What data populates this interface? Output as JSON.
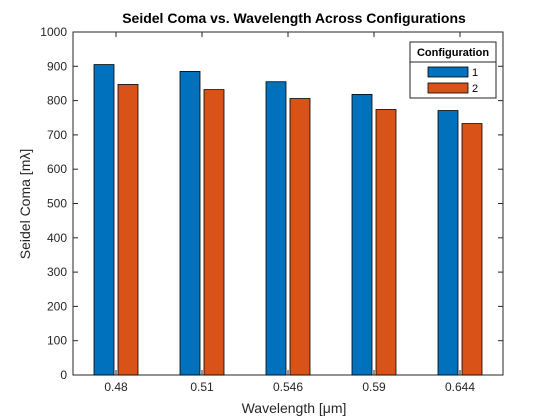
{
  "chart_data": {
    "type": "bar",
    "title": "Seidel Coma vs. Wavelength Across Configurations",
    "xlabel": "Wavelength [μm]",
    "ylabel": "Seidel Coma [mλ]",
    "categories": [
      "0.48",
      "0.51",
      "0.546",
      "0.59",
      "0.644"
    ],
    "ylim": [
      0,
      1000
    ],
    "yticks": [
      "0",
      "100",
      "200",
      "300",
      "400",
      "500",
      "600",
      "700",
      "800",
      "900",
      "1000"
    ],
    "grid": false,
    "legend": {
      "title": "Configuration",
      "placement": "top-right"
    },
    "series": [
      {
        "name": "1",
        "color": "#0072BD",
        "values": [
          905,
          885,
          855,
          818,
          771
        ]
      },
      {
        "name": "2",
        "color": "#D95319",
        "values": [
          847,
          832,
          806,
          774,
          733
        ]
      }
    ]
  }
}
